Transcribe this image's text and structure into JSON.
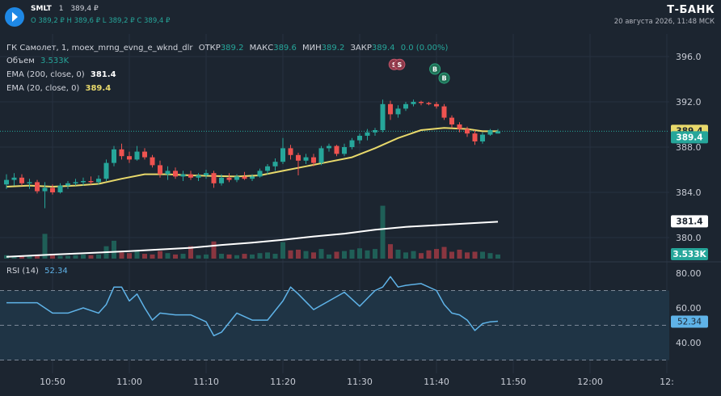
{
  "header": {
    "ticker": "SMLT",
    "interval": "1",
    "last_price": "389,4 ₽",
    "ohlc_line": "O 389,2 ₽  H 389,6 ₽  L 389,2 ₽  C 389,4 ₽",
    "brand": "Т-БАНК",
    "datetime": "20 августа 2026, 11:48 МСК"
  },
  "legend": {
    "instrument": "ГК Самолет, 1, moex_mrng_evng_e_wknd_dlr",
    "open_label": "ОТКР",
    "open_value": "389.2",
    "high_label": "МАКС",
    "high_value": "389.6",
    "low_label": "МИН",
    "low_value": "389.2",
    "close_label": "ЗАКР",
    "close_value": "389.4",
    "change": "0.0 (0.00%)",
    "volume_label": "Объем",
    "volume_value": "3.533K",
    "ema200_label": "EMA (200, close, 0)",
    "ema200_value": "381.4",
    "ema20_label": "EMA (20, close, 0)",
    "ema20_value": "389.4",
    "rsi_label": "RSI (14)",
    "rsi_value": "52.34"
  },
  "colors": {
    "up": "#26a69a",
    "down": "#ef5350",
    "ema20": "#e8d96b",
    "ema200": "#ffffff",
    "rsi": "#5fb3e8",
    "background": "#1c2530"
  },
  "chart_data": [
    {
      "type": "candlestick",
      "title": "ГК Самолет, 1, moex_mrng_evng_e_wknd_dlr",
      "x_tick_labels": [
        "10:50",
        "11:00",
        "11:10",
        "11:20",
        "11:30",
        "11:40",
        "11:50",
        "12:00",
        "12:"
      ],
      "x_tick_minutes": [
        650,
        660,
        670,
        680,
        690,
        700,
        710,
        720,
        730
      ],
      "y_tick_labels": [
        "396.0",
        "392.0",
        "388.0",
        "384.0",
        "380.0"
      ],
      "ylim": [
        379.0,
        397.0
      ],
      "price_badges": [
        {
          "value": "389.4",
          "kind": "ema20"
        },
        {
          "value": "389.4",
          "kind": "last"
        },
        {
          "value": "381.4",
          "kind": "ema200"
        },
        {
          "value": "3.533K",
          "kind": "volume"
        }
      ],
      "signal_markers": [
        {
          "label": "S",
          "minute": 694.5,
          "price": 395.3
        },
        {
          "label": "S",
          "minute": 695.2,
          "price": 395.3
        },
        {
          "label": "B",
          "minute": 699.8,
          "price": 394.9
        },
        {
          "label": "B",
          "minute": 701.0,
          "price": 394.1
        }
      ],
      "candles": [
        {
          "t": 644,
          "o": 384.7,
          "h": 385.6,
          "l": 384.3,
          "c": 385.1
        },
        {
          "t": 645,
          "o": 385.1,
          "h": 385.7,
          "l": 384.6,
          "c": 385.3
        },
        {
          "t": 646,
          "o": 385.3,
          "h": 385.6,
          "l": 384.6,
          "c": 384.8
        },
        {
          "t": 647,
          "o": 384.8,
          "h": 385.2,
          "l": 384.3,
          "c": 384.9
        },
        {
          "t": 648,
          "o": 384.9,
          "h": 385.1,
          "l": 383.9,
          "c": 384.1
        },
        {
          "t": 649,
          "o": 384.1,
          "h": 384.9,
          "l": 382.6,
          "c": 384.4
        },
        {
          "t": 650,
          "o": 384.4,
          "h": 384.7,
          "l": 383.8,
          "c": 384.0
        },
        {
          "t": 651,
          "o": 384.0,
          "h": 384.8,
          "l": 383.9,
          "c": 384.6
        },
        {
          "t": 652,
          "o": 384.6,
          "h": 385.0,
          "l": 384.3,
          "c": 384.8
        },
        {
          "t": 653,
          "o": 384.8,
          "h": 385.2,
          "l": 384.6,
          "c": 384.9
        },
        {
          "t": 654,
          "o": 384.9,
          "h": 385.3,
          "l": 384.6,
          "c": 385.0
        },
        {
          "t": 655,
          "o": 385.0,
          "h": 385.4,
          "l": 384.7,
          "c": 384.9
        },
        {
          "t": 656,
          "o": 384.9,
          "h": 385.5,
          "l": 384.7,
          "c": 385.2
        },
        {
          "t": 657,
          "o": 385.2,
          "h": 386.9,
          "l": 385.0,
          "c": 386.6
        },
        {
          "t": 658,
          "o": 386.6,
          "h": 388.1,
          "l": 386.3,
          "c": 387.8
        },
        {
          "t": 659,
          "o": 387.8,
          "h": 388.3,
          "l": 386.9,
          "c": 387.2
        },
        {
          "t": 660,
          "o": 387.2,
          "h": 387.6,
          "l": 386.6,
          "c": 386.9
        },
        {
          "t": 661,
          "o": 386.9,
          "h": 388.1,
          "l": 386.8,
          "c": 387.6
        },
        {
          "t": 662,
          "o": 387.6,
          "h": 387.9,
          "l": 386.9,
          "c": 387.1
        },
        {
          "t": 663,
          "o": 387.1,
          "h": 387.3,
          "l": 386.2,
          "c": 386.4
        },
        {
          "t": 664,
          "o": 386.4,
          "h": 386.8,
          "l": 385.3,
          "c": 385.6
        },
        {
          "t": 665,
          "o": 385.6,
          "h": 386.3,
          "l": 385.1,
          "c": 385.9
        },
        {
          "t": 666,
          "o": 385.9,
          "h": 386.2,
          "l": 385.2,
          "c": 385.4
        },
        {
          "t": 667,
          "o": 385.4,
          "h": 385.9,
          "l": 385.0,
          "c": 385.6
        },
        {
          "t": 668,
          "o": 385.6,
          "h": 385.9,
          "l": 385.1,
          "c": 385.3
        },
        {
          "t": 669,
          "o": 385.3,
          "h": 385.7,
          "l": 385.0,
          "c": 385.5
        },
        {
          "t": 670,
          "o": 385.5,
          "h": 386.0,
          "l": 385.2,
          "c": 385.7
        },
        {
          "t": 671,
          "o": 385.7,
          "h": 385.9,
          "l": 384.4,
          "c": 384.8
        },
        {
          "t": 672,
          "o": 384.8,
          "h": 385.6,
          "l": 384.6,
          "c": 385.3
        },
        {
          "t": 673,
          "o": 385.3,
          "h": 385.7,
          "l": 384.9,
          "c": 385.1
        },
        {
          "t": 674,
          "o": 385.1,
          "h": 385.6,
          "l": 384.9,
          "c": 385.4
        },
        {
          "t": 675,
          "o": 385.4,
          "h": 385.8,
          "l": 385.1,
          "c": 385.2
        },
        {
          "t": 676,
          "o": 385.2,
          "h": 385.6,
          "l": 385.0,
          "c": 385.4
        },
        {
          "t": 677,
          "o": 385.4,
          "h": 386.1,
          "l": 385.3,
          "c": 385.9
        },
        {
          "t": 678,
          "o": 385.9,
          "h": 386.5,
          "l": 385.6,
          "c": 386.3
        },
        {
          "t": 679,
          "o": 386.3,
          "h": 387.0,
          "l": 385.9,
          "c": 386.7
        },
        {
          "t": 680,
          "o": 386.7,
          "h": 388.8,
          "l": 386.5,
          "c": 387.9
        },
        {
          "t": 681,
          "o": 387.9,
          "h": 388.2,
          "l": 386.9,
          "c": 387.3
        },
        {
          "t": 682,
          "o": 387.3,
          "h": 387.5,
          "l": 385.5,
          "c": 386.8
        },
        {
          "t": 683,
          "o": 386.8,
          "h": 387.4,
          "l": 386.5,
          "c": 387.1
        },
        {
          "t": 684,
          "o": 387.1,
          "h": 387.4,
          "l": 386.3,
          "c": 386.6
        },
        {
          "t": 685,
          "o": 386.6,
          "h": 388.1,
          "l": 386.4,
          "c": 387.9
        },
        {
          "t": 686,
          "o": 387.9,
          "h": 388.3,
          "l": 387.6,
          "c": 388.1
        },
        {
          "t": 687,
          "o": 388.1,
          "h": 388.2,
          "l": 387.2,
          "c": 387.4
        },
        {
          "t": 688,
          "o": 387.4,
          "h": 388.3,
          "l": 387.2,
          "c": 388.0
        },
        {
          "t": 689,
          "o": 388.0,
          "h": 388.8,
          "l": 387.8,
          "c": 388.6
        },
        {
          "t": 690,
          "o": 388.6,
          "h": 389.2,
          "l": 388.3,
          "c": 389.0
        },
        {
          "t": 691,
          "o": 389.0,
          "h": 389.6,
          "l": 388.6,
          "c": 389.3
        },
        {
          "t": 692,
          "o": 389.3,
          "h": 389.7,
          "l": 389.0,
          "c": 389.5
        },
        {
          "t": 693,
          "o": 389.5,
          "h": 392.2,
          "l": 389.3,
          "c": 391.8
        },
        {
          "t": 694,
          "o": 391.8,
          "h": 392.1,
          "l": 390.4,
          "c": 390.9
        },
        {
          "t": 695,
          "o": 390.9,
          "h": 391.7,
          "l": 390.6,
          "c": 391.4
        },
        {
          "t": 696,
          "o": 391.4,
          "h": 392.0,
          "l": 391.2,
          "c": 391.8
        },
        {
          "t": 697,
          "o": 391.8,
          "h": 392.2,
          "l": 391.6,
          "c": 392.0
        },
        {
          "t": 698,
          "o": 392.0,
          "h": 392.1,
          "l": 391.7,
          "c": 391.9
        },
        {
          "t": 699,
          "o": 391.9,
          "h": 392.0,
          "l": 391.7,
          "c": 391.8
        },
        {
          "t": 700,
          "o": 391.8,
          "h": 392.0,
          "l": 391.4,
          "c": 391.6
        },
        {
          "t": 701,
          "o": 391.6,
          "h": 391.8,
          "l": 390.4,
          "c": 390.6
        },
        {
          "t": 702,
          "o": 390.6,
          "h": 390.8,
          "l": 389.7,
          "c": 390.0
        },
        {
          "t": 703,
          "o": 390.0,
          "h": 390.2,
          "l": 389.3,
          "c": 389.6
        },
        {
          "t": 704,
          "o": 389.6,
          "h": 389.8,
          "l": 388.9,
          "c": 389.2
        },
        {
          "t": 705,
          "o": 389.2,
          "h": 389.5,
          "l": 388.2,
          "c": 388.5
        },
        {
          "t": 706,
          "o": 388.5,
          "h": 389.3,
          "l": 388.3,
          "c": 389.1
        },
        {
          "t": 707,
          "o": 389.1,
          "h": 389.6,
          "l": 389.0,
          "c": 389.5
        },
        {
          "t": 708,
          "o": 389.2,
          "h": 389.6,
          "l": 389.2,
          "c": 389.4
        }
      ]
    },
    {
      "type": "bar",
      "title": "Объем",
      "values": [
        0.5,
        0.4,
        0.3,
        0.4,
        0.6,
        3.6,
        0.5,
        0.4,
        0.4,
        0.5,
        0.6,
        0.5,
        0.6,
        1.8,
        2.6,
        0.9,
        0.8,
        1.2,
        0.7,
        0.6,
        1.1,
        0.8,
        0.6,
        0.7,
        1.8,
        0.5,
        0.6,
        2.5,
        0.7,
        0.6,
        0.5,
        0.7,
        0.6,
        0.8,
        0.9,
        0.7,
        2.4,
        1.2,
        1.3,
        1.1,
        0.9,
        1.4,
        0.6,
        1.0,
        1.1,
        1.3,
        1.5,
        1.2,
        1.4,
        7.7,
        2.1,
        1.3,
        0.9,
        1.1,
        0.8,
        1.2,
        1.4,
        1.7,
        1.0,
        1.3,
        0.9,
        1.0,
        1.0,
        0.8,
        0.6
      ]
    },
    {
      "type": "line",
      "title": "EMA",
      "series": [
        {
          "name": "EMA (200, close, 0)",
          "x": [
            644,
            650,
            660,
            668,
            672,
            676,
            680,
            684,
            688,
            692,
            696,
            700,
            704,
            708
          ],
          "values": [
            378.3,
            378.5,
            378.8,
            379.1,
            379.35,
            379.55,
            379.8,
            380.1,
            380.35,
            380.7,
            380.95,
            381.1,
            381.25,
            381.4
          ]
        },
        {
          "name": "EMA (20, close, 0)",
          "x": [
            644,
            647,
            650,
            653,
            656,
            659,
            662,
            665,
            668,
            671,
            674,
            677,
            680,
            683,
            686,
            689,
            692,
            695,
            698,
            701,
            704,
            706,
            708
          ],
          "values": [
            384.5,
            384.6,
            384.5,
            384.6,
            384.75,
            385.2,
            385.6,
            385.6,
            385.5,
            385.45,
            385.4,
            385.5,
            385.9,
            386.3,
            386.7,
            387.1,
            387.9,
            388.8,
            389.5,
            389.7,
            389.6,
            389.4,
            389.4
          ]
        }
      ]
    },
    {
      "type": "line",
      "title": "RSI (14)",
      "y_tick_labels": [
        "80.00",
        "60.00",
        "40.00"
      ],
      "ylim": [
        29.0,
        86.0
      ],
      "levels": [
        70,
        50,
        30
      ],
      "series": [
        {
          "name": "RSI (14)",
          "x": [
            644,
            646,
            648,
            650,
            652,
            654,
            656,
            657,
            658,
            659,
            660,
            661,
            662,
            663,
            664,
            666,
            668,
            670,
            671,
            672,
            674,
            676,
            678,
            680,
            681,
            682,
            684,
            686,
            688,
            690,
            692,
            693,
            694,
            695,
            696,
            698,
            700,
            701,
            702,
            703,
            704,
            705,
            706,
            707,
            708
          ],
          "values": [
            63,
            63,
            63,
            57,
            57,
            60,
            57,
            62,
            72,
            72,
            64,
            68,
            60,
            53,
            57,
            56,
            56,
            52,
            44,
            46,
            57,
            53,
            53,
            64,
            72,
            68,
            59,
            64,
            69,
            61,
            70,
            72,
            78,
            72,
            73,
            74,
            70,
            62,
            57,
            56,
            53,
            47,
            51,
            52,
            52.34
          ]
        }
      ]
    }
  ]
}
